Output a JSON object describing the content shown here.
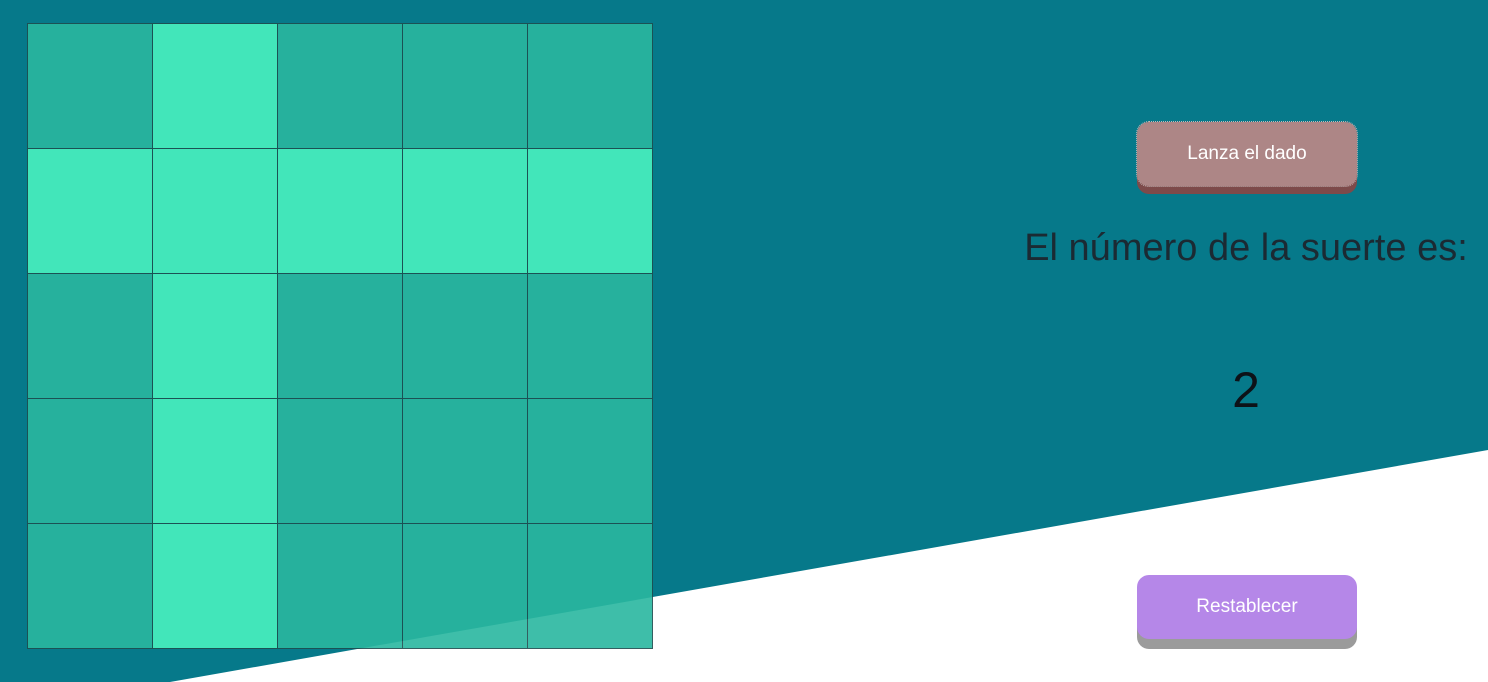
{
  "board": {
    "rows": 5,
    "cols": 5,
    "highlighted": [
      [
        false,
        true,
        false,
        false,
        false
      ],
      [
        true,
        true,
        true,
        true,
        true
      ],
      [
        false,
        true,
        false,
        false,
        false
      ],
      [
        false,
        true,
        false,
        false,
        false
      ],
      [
        false,
        true,
        false,
        false,
        false
      ]
    ]
  },
  "controls": {
    "roll_label": "Lanza el dado",
    "reset_label": "Restablecer"
  },
  "result": {
    "label": "El número de la suerte es:",
    "value": "2"
  },
  "colors": {
    "background": "#06798a",
    "cell": "#2ab8a0",
    "cell_highlight": "#49f2c0",
    "roll_button": "#ad8686",
    "reset_button": "#b587e8"
  }
}
